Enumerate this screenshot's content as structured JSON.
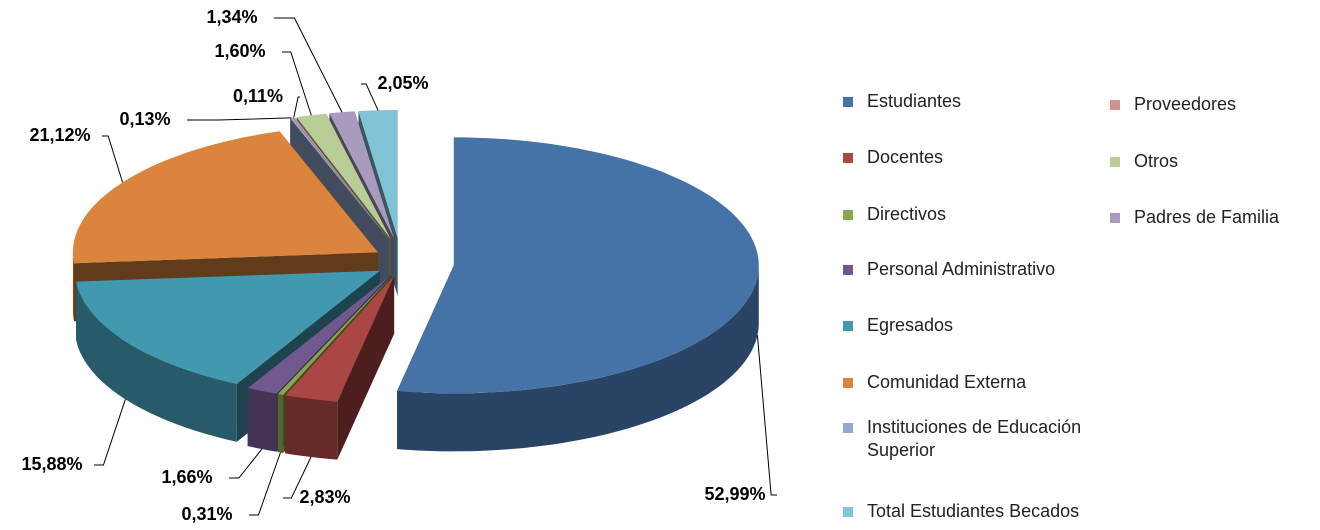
{
  "chart_data": {
    "type": "pie",
    "three_d": true,
    "exploded": true,
    "legend": "right",
    "categories": [
      "Estudiantes",
      "Docentes",
      "Directivos",
      "Personal Administrativo",
      "Egresados",
      "Comunidad Externa",
      "Instituciones de Educación Superior",
      "Proveedores",
      "Otros",
      "Padres de Familia",
      "Total Estudiantes Becados"
    ],
    "values": [
      52.99,
      2.83,
      0.31,
      1.66,
      15.88,
      21.12,
      0.13,
      0.11,
      1.6,
      1.34,
      2.05
    ],
    "value_labels": [
      "52,99%",
      "2,83%",
      "0,31%",
      "1,66%",
      "15,88%",
      "21,12%",
      "0,13%",
      "0,11%",
      "1,60%",
      "1,34%",
      "2,05%"
    ],
    "colors": [
      "#4572a7",
      "#aa4643",
      "#89a54e",
      "#71588f",
      "#4198af",
      "#db843d",
      "#93a9cf",
      "#d19392",
      "#b9cd96",
      "#a99bbd",
      "#80c3d4"
    ]
  }
}
